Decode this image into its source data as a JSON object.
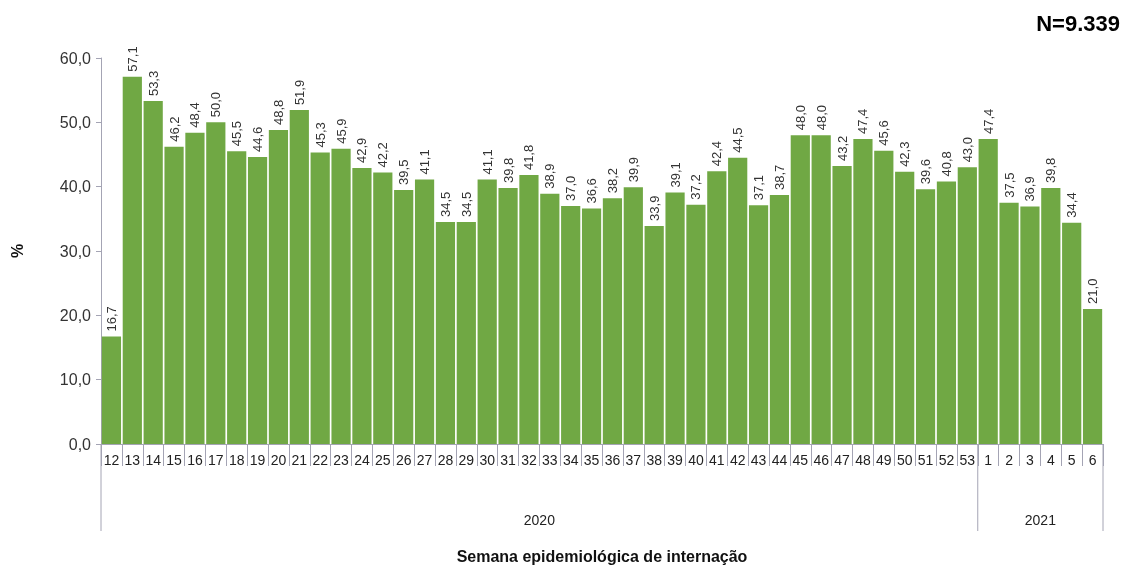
{
  "chart_data": {
    "type": "bar",
    "ylabel": "%",
    "xlabel": "Semana epidemiológica de internação",
    "annotations": [
      "N=9.339",
      "2020",
      "2021"
    ],
    "categories": [
      "12",
      "13",
      "14",
      "15",
      "16",
      "17",
      "18",
      "19",
      "20",
      "21",
      "22",
      "23",
      "24",
      "25",
      "26",
      "27",
      "28",
      "29",
      "30",
      "31",
      "32",
      "33",
      "34",
      "35",
      "36",
      "37",
      "38",
      "39",
      "40",
      "41",
      "42",
      "43",
      "44",
      "45",
      "46",
      "47",
      "48",
      "49",
      "50",
      "51",
      "52",
      "53",
      "1",
      "2",
      "3",
      "4",
      "5",
      "6"
    ],
    "values": [
      16.7,
      57.1,
      53.3,
      46.2,
      48.4,
      50.0,
      45.5,
      44.6,
      48.8,
      51.9,
      45.3,
      45.9,
      42.9,
      42.2,
      39.5,
      41.1,
      34.5,
      34.5,
      41.1,
      39.8,
      41.8,
      38.9,
      37.0,
      36.6,
      38.2,
      39.9,
      33.9,
      39.1,
      37.2,
      42.4,
      44.5,
      37.1,
      38.7,
      48.0,
      48.0,
      43.2,
      47.4,
      45.6,
      42.3,
      39.6,
      40.8,
      43.0,
      47.4,
      37.5,
      36.9,
      39.8,
      34.4,
      21.0
    ],
    "value_labels": [
      "16,7",
      "57,1",
      "53,3",
      "46,2",
      "48,4",
      "50,0",
      "45,5",
      "44,6",
      "48,8",
      "51,9",
      "45,3",
      "45,9",
      "42,9",
      "42,2",
      "39,5",
      "41,1",
      "34,5",
      "34,5",
      "41,1",
      "39,8",
      "41,8",
      "38,9",
      "37,0",
      "36,6",
      "38,2",
      "39,9",
      "33,9",
      "39,1",
      "37,2",
      "42,4",
      "44,5",
      "37,1",
      "38,7",
      "48,0",
      "48,0",
      "43,2",
      "47,4",
      "45,6",
      "42,3",
      "39,6",
      "40,8",
      "43,0",
      "47,4",
      "37,5",
      "36,9",
      "39,8",
      "34,4",
      "21,0"
    ],
    "color": "#70a844",
    "ylim": [
      0,
      60
    ],
    "yticks": [
      {
        "value": 0,
        "label": "0,0"
      },
      {
        "value": 10,
        "label": "10,0"
      },
      {
        "value": 20,
        "label": "20,0"
      },
      {
        "value": 30,
        "label": "30,0"
      },
      {
        "value": 40,
        "label": "40,0"
      },
      {
        "value": 50,
        "label": "50,0"
      },
      {
        "value": 60,
        "label": "60,0"
      }
    ]
  }
}
